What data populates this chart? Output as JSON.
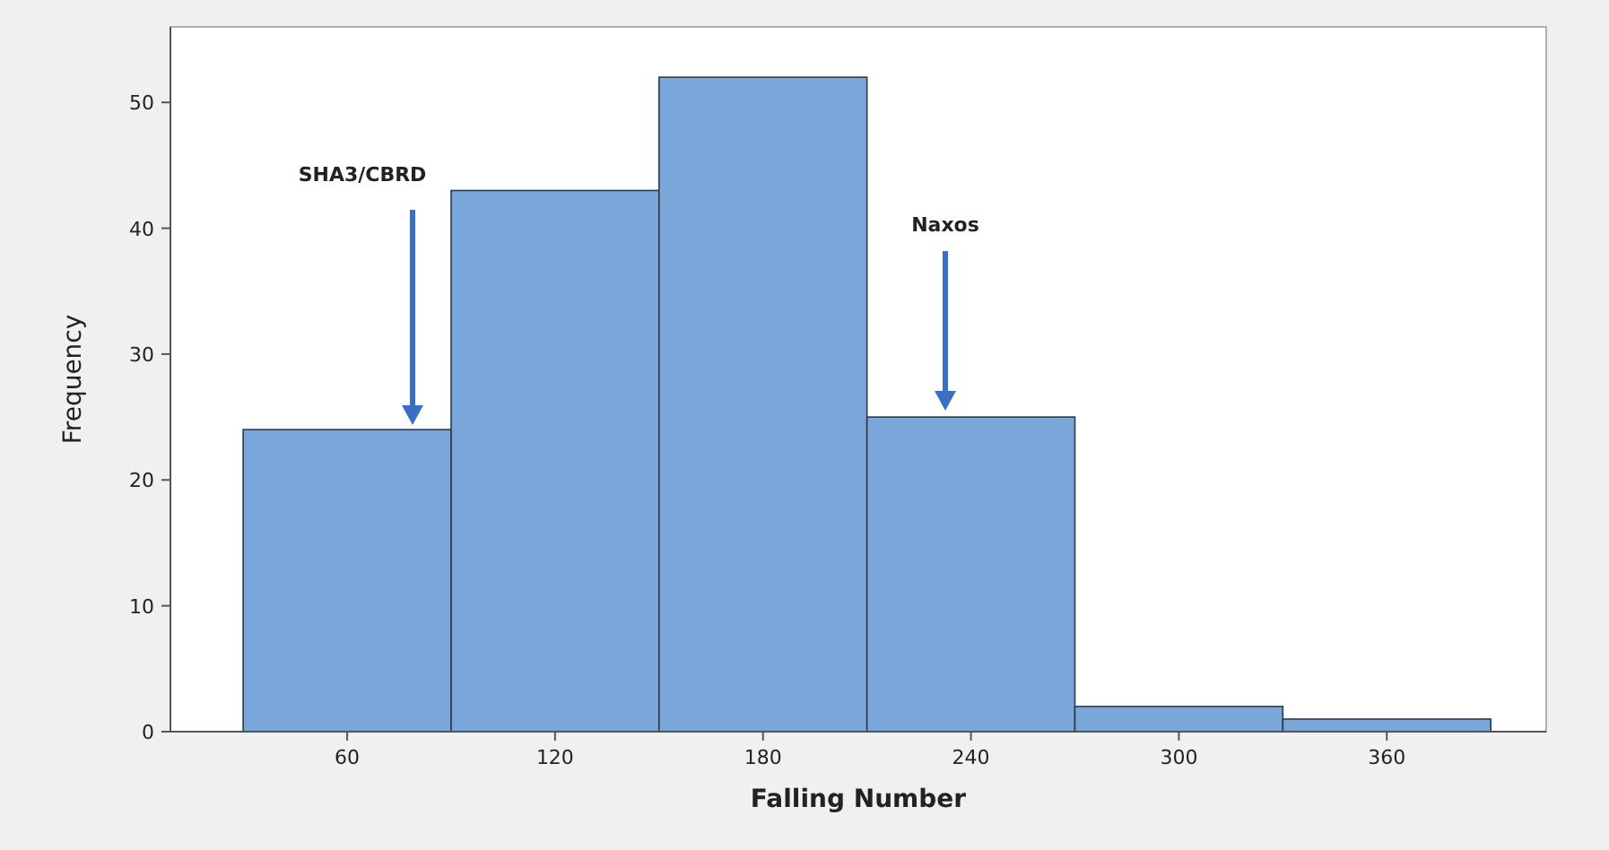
{
  "chart_data": {
    "type": "histogram",
    "xlabel": "Falling Number",
    "ylabel": "Frequency",
    "bins": [
      30,
      90,
      150,
      210,
      270,
      330,
      390
    ],
    "values": [
      24,
      43,
      52,
      25,
      2,
      1
    ],
    "color": "#7ba6d9",
    "xlim": [
      9,
      406
    ],
    "ylim": [
      0,
      56
    ],
    "xticks": [
      60,
      120,
      180,
      240,
      300,
      360
    ],
    "yticks": [
      0,
      10,
      20,
      30,
      40,
      50
    ],
    "grid": false,
    "annotations": [
      "SHA3/CBRD",
      "Naxos"
    ]
  }
}
